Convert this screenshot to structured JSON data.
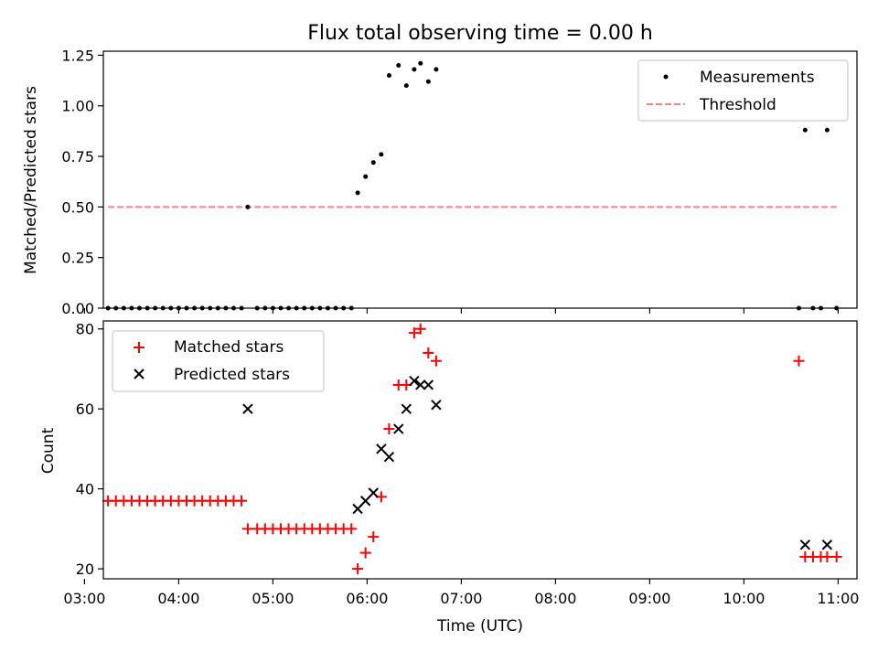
{
  "chart_data": [
    {
      "type": "scatter",
      "title": "Flux total observing time = 0.00 h",
      "xlabel": "",
      "ylabel": "Matched/Predicted stars",
      "xlim": [
        "03:12",
        "11:12"
      ],
      "ylim": [
        0,
        1.27
      ],
      "yticks": [
        "0.00",
        "0.25",
        "0.50",
        "0.75",
        "1.00",
        "1.25"
      ],
      "legend_position": "top-right",
      "series": [
        {
          "name": "Measurements",
          "style": "dot",
          "color": "#000000",
          "points": [
            [
              "03:15",
              0
            ],
            [
              "03:20",
              0
            ],
            [
              "03:25",
              0
            ],
            [
              "03:30",
              0
            ],
            [
              "03:35",
              0
            ],
            [
              "03:40",
              0
            ],
            [
              "03:45",
              0
            ],
            [
              "03:50",
              0
            ],
            [
              "03:55",
              0
            ],
            [
              "04:00",
              0
            ],
            [
              "04:05",
              0
            ],
            [
              "04:10",
              0
            ],
            [
              "04:15",
              0
            ],
            [
              "04:20",
              0
            ],
            [
              "04:25",
              0
            ],
            [
              "04:30",
              0
            ],
            [
              "04:35",
              0
            ],
            [
              "04:40",
              0
            ],
            [
              "04:44",
              0.5
            ],
            [
              "04:50",
              0
            ],
            [
              "04:55",
              0
            ],
            [
              "05:00",
              0
            ],
            [
              "05:05",
              0
            ],
            [
              "05:10",
              0
            ],
            [
              "05:15",
              0
            ],
            [
              "05:20",
              0
            ],
            [
              "05:25",
              0
            ],
            [
              "05:30",
              0
            ],
            [
              "05:35",
              0
            ],
            [
              "05:40",
              0
            ],
            [
              "05:45",
              0
            ],
            [
              "05:50",
              0
            ],
            [
              "05:54",
              0.57
            ],
            [
              "05:59",
              0.65
            ],
            [
              "06:04",
              0.72
            ],
            [
              "06:09",
              0.76
            ],
            [
              "06:14",
              1.15
            ],
            [
              "06:20",
              1.2
            ],
            [
              "06:25",
              1.1
            ],
            [
              "06:30",
              1.18
            ],
            [
              "06:34",
              1.21
            ],
            [
              "06:39",
              1.12
            ],
            [
              "06:44",
              1.18
            ],
            [
              "10:35",
              0
            ],
            [
              "10:39",
              0.88
            ],
            [
              "10:44",
              0
            ],
            [
              "10:49",
              0
            ],
            [
              "10:53",
              0.88
            ],
            [
              "10:59",
              0
            ]
          ]
        },
        {
          "name": "Threshold",
          "style": "dashed-line",
          "color": "#ff8080",
          "points": [
            [
              "03:15",
              0.5
            ],
            [
              "10:59",
              0.5
            ]
          ]
        }
      ]
    },
    {
      "type": "scatter",
      "title": "",
      "xlabel": "Time (UTC)",
      "ylabel": "Count",
      "xlim": [
        "03:12",
        "11:12"
      ],
      "ylim": [
        17.5,
        82
      ],
      "yticks": [
        "20",
        "40",
        "60",
        "80"
      ],
      "xticks": [
        "03:00",
        "04:00",
        "05:00",
        "06:00",
        "07:00",
        "08:00",
        "09:00",
        "10:00",
        "11:00"
      ],
      "legend_position": "top-left",
      "series": [
        {
          "name": "Matched stars",
          "marker": "plus",
          "color": "#ff0000",
          "points": [
            [
              "03:15",
              37
            ],
            [
              "03:20",
              37
            ],
            [
              "03:25",
              37
            ],
            [
              "03:30",
              37
            ],
            [
              "03:35",
              37
            ],
            [
              "03:40",
              37
            ],
            [
              "03:45",
              37
            ],
            [
              "03:50",
              37
            ],
            [
              "03:55",
              37
            ],
            [
              "04:00",
              37
            ],
            [
              "04:05",
              37
            ],
            [
              "04:10",
              37
            ],
            [
              "04:15",
              37
            ],
            [
              "04:20",
              37
            ],
            [
              "04:25",
              37
            ],
            [
              "04:30",
              37
            ],
            [
              "04:35",
              37
            ],
            [
              "04:40",
              37
            ],
            [
              "04:44",
              30
            ],
            [
              "04:50",
              30
            ],
            [
              "04:55",
              30
            ],
            [
              "05:00",
              30
            ],
            [
              "05:05",
              30
            ],
            [
              "05:10",
              30
            ],
            [
              "05:15",
              30
            ],
            [
              "05:20",
              30
            ],
            [
              "05:25",
              30
            ],
            [
              "05:30",
              30
            ],
            [
              "05:35",
              30
            ],
            [
              "05:40",
              30
            ],
            [
              "05:45",
              30
            ],
            [
              "05:50",
              30
            ],
            [
              "05:54",
              20
            ],
            [
              "05:59",
              24
            ],
            [
              "06:04",
              28
            ],
            [
              "06:09",
              38
            ],
            [
              "06:14",
              55
            ],
            [
              "06:20",
              66
            ],
            [
              "06:25",
              66
            ],
            [
              "06:30",
              79
            ],
            [
              "06:34",
              80
            ],
            [
              "06:39",
              74
            ],
            [
              "06:44",
              72
            ],
            [
              "10:35",
              72
            ],
            [
              "10:39",
              23
            ],
            [
              "10:44",
              23
            ],
            [
              "10:49",
              23
            ],
            [
              "10:53",
              23
            ],
            [
              "10:59",
              23
            ]
          ]
        },
        {
          "name": "Predicted stars",
          "marker": "x",
          "color": "#000000",
          "points": [
            [
              "04:44",
              60
            ],
            [
              "05:54",
              35
            ],
            [
              "05:59",
              37
            ],
            [
              "06:04",
              39
            ],
            [
              "06:09",
              50
            ],
            [
              "06:14",
              48
            ],
            [
              "06:20",
              55
            ],
            [
              "06:25",
              60
            ],
            [
              "06:30",
              67
            ],
            [
              "06:34",
              66
            ],
            [
              "06:39",
              66
            ],
            [
              "06:44",
              61
            ],
            [
              "10:39",
              26
            ],
            [
              "10:53",
              26
            ]
          ]
        }
      ]
    }
  ]
}
